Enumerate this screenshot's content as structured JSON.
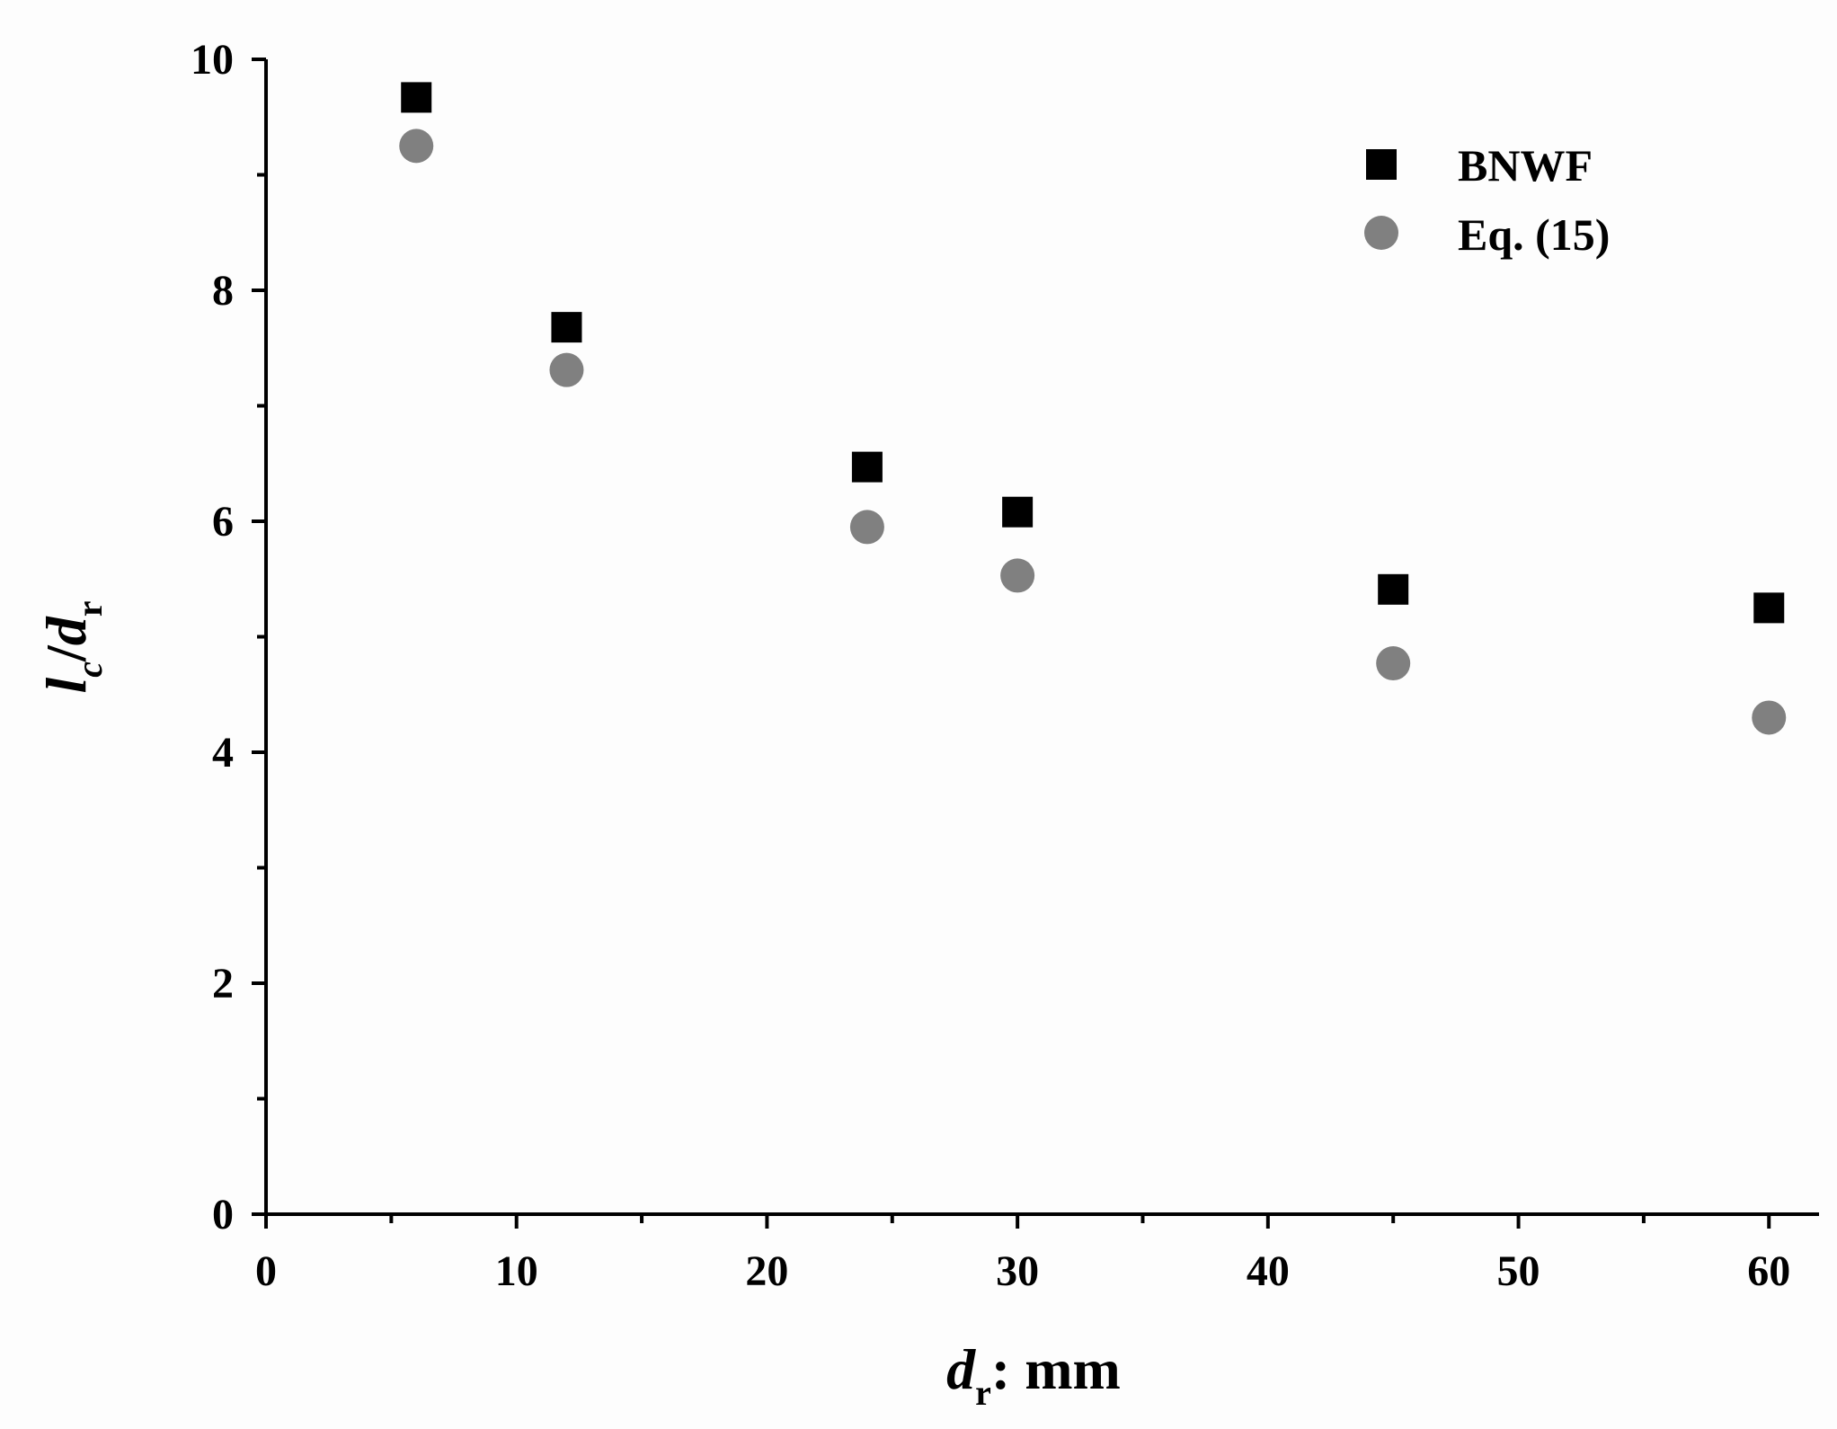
{
  "chart_data": {
    "type": "scatter",
    "xlabel": {
      "var": "d",
      "sub": "r",
      "suffix": ": mm"
    },
    "ylabel": {
      "num": "l",
      "num_sub": "c",
      "sep": "/",
      "den": "d",
      "den_sub": "r"
    },
    "xlim": [
      0,
      62
    ],
    "ylim": [
      0,
      10
    ],
    "xticks": [
      0,
      10,
      20,
      30,
      40,
      50,
      60
    ],
    "yticks": [
      0,
      2,
      4,
      6,
      8,
      10
    ],
    "grid": false,
    "legend_position": "top-right",
    "series": [
      {
        "name": "BNWF",
        "marker": "square",
        "color": "#000000",
        "x": [
          6,
          12,
          24,
          30,
          45,
          60
        ],
        "y": [
          9.67,
          7.68,
          6.47,
          6.08,
          5.41,
          5.25
        ]
      },
      {
        "name": "Eq. (15)",
        "marker": "circle",
        "color": "#808080",
        "x": [
          6,
          12,
          24,
          30,
          45,
          60
        ],
        "y": [
          9.25,
          7.31,
          5.95,
          5.53,
          4.77,
          4.3
        ]
      }
    ]
  }
}
